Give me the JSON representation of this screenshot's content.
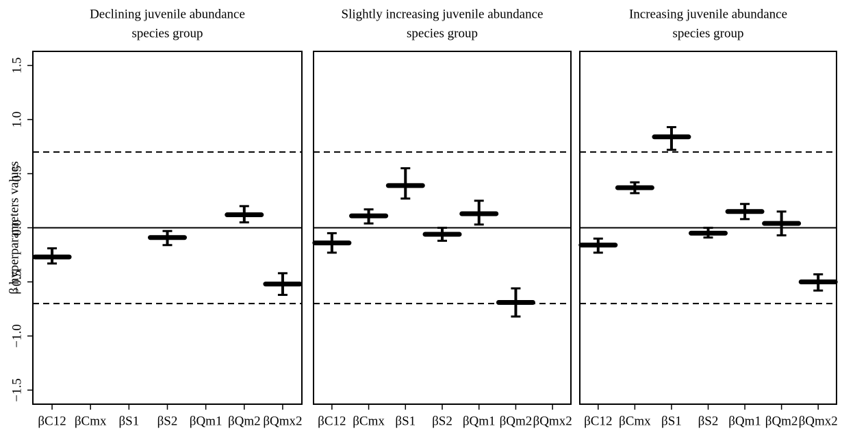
{
  "chart_data": [
    {
      "type": "box",
      "title": [
        "Declining juvenile abundance",
        "species group"
      ],
      "ylabel": "β hyperparameters values",
      "categories": [
        "βC12",
        "βCmx",
        "βS1",
        "βS2",
        "βQm1",
        "βQm2",
        "βQmx2"
      ],
      "values": [
        -0.27,
        null,
        null,
        -0.09,
        null,
        0.12,
        -0.52
      ],
      "lows": [
        -0.33,
        null,
        null,
        -0.16,
        null,
        0.05,
        -0.62
      ],
      "highs": [
        -0.19,
        null,
        null,
        -0.03,
        null,
        0.2,
        -0.42
      ],
      "color": "#000000",
      "ylim": [
        -1.63,
        1.63
      ],
      "yticks": [
        1.5,
        {
          "value": 1,
          "label": "1.0"
        },
        0.5,
        {
          "value": 0,
          "label": "0.0"
        },
        {
          "value": -0.5,
          "label": "−0.5"
        },
        {
          "value": -1,
          "label": "−1.0"
        },
        {
          "value": -1.5,
          "label": "−1.5"
        }
      ],
      "reference_lines": [
        {
          "value": 0.7,
          "style": "dashed"
        },
        {
          "value": 0,
          "style": "solid"
        },
        {
          "value": -0.7,
          "style": "dashed"
        }
      ]
    },
    {
      "type": "box",
      "title": [
        "Slightly increasing juvenile abundance",
        "species group"
      ],
      "categories": [
        "βC12",
        "βCmx",
        "βS1",
        "βS2",
        "βQm1",
        "βQm2",
        "βQmx2"
      ],
      "values": [
        -0.14,
        0.11,
        0.39,
        -0.06,
        0.13,
        -0.69,
        null
      ],
      "lows": [
        -0.23,
        0.04,
        0.27,
        -0.12,
        0.03,
        -0.82,
        null
      ],
      "highs": [
        -0.05,
        0.17,
        0.55,
        0.0,
        0.25,
        -0.56,
        null
      ],
      "color": "#000000",
      "ylim": [
        -1.63,
        1.63
      ],
      "reference_lines": [
        {
          "value": 0.7,
          "style": "dashed"
        },
        {
          "value": 0,
          "style": "solid"
        },
        {
          "value": -0.7,
          "style": "dashed"
        }
      ]
    },
    {
      "type": "box",
      "title": [
        "Increasing juvenile abundance",
        "species group"
      ],
      "categories": [
        "βC12",
        "βCmx",
        "βS1",
        "βS2",
        "βQm1",
        "βQm2",
        "βQmx2"
      ],
      "values": [
        -0.16,
        0.37,
        0.84,
        -0.05,
        0.15,
        0.04,
        -0.5
      ],
      "lows": [
        -0.23,
        0.32,
        0.72,
        -0.09,
        0.08,
        -0.07,
        -0.58
      ],
      "highs": [
        -0.1,
        0.42,
        0.93,
        0.0,
        0.22,
        0.15,
        -0.43
      ],
      "color": "#000000",
      "ylim": [
        -1.63,
        1.63
      ],
      "reference_lines": [
        {
          "value": 0.7,
          "style": "dashed"
        },
        {
          "value": 0,
          "style": "solid"
        },
        {
          "value": -0.7,
          "style": "dashed"
        }
      ]
    }
  ]
}
